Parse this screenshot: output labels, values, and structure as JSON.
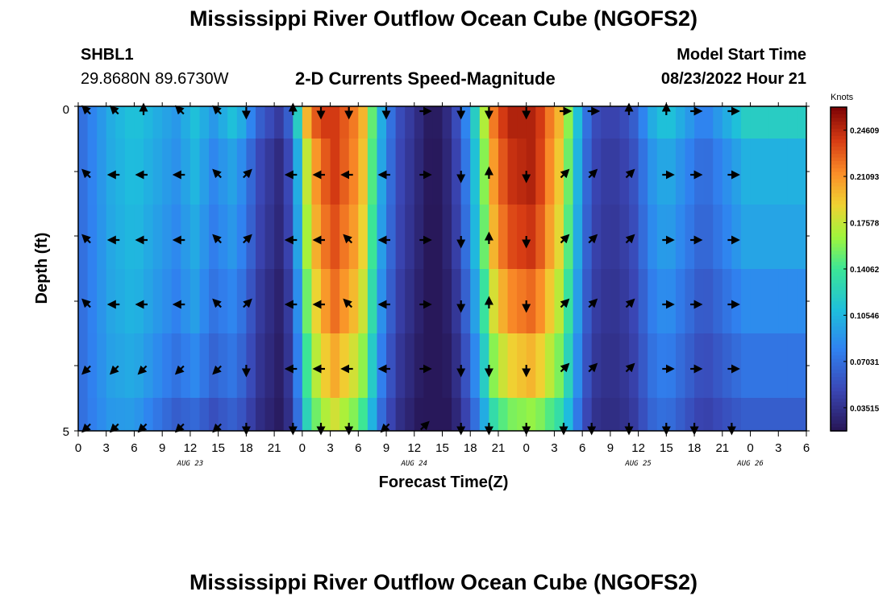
{
  "page": {
    "title": "Mississippi River Outflow Ocean Cube (NGOFS2)",
    "footer_title": "Mississippi River Outflow Ocean Cube (NGOFS2)"
  },
  "station": {
    "id": "SHBL1",
    "coords": "29.8680N  89.6730W"
  },
  "variable": "2-D Currents Speed-Magnitude",
  "model_start": {
    "label": "Model Start Time",
    "value": "08/23/2022 Hour 21"
  },
  "chart_data": {
    "type": "heatmap",
    "title": "2-D Currents Speed-Magnitude",
    "xlabel": "Forecast Time(Z)",
    "ylabel": "Depth (ft)",
    "ylim": [
      0,
      5
    ],
    "y_tick_labels": [
      "0",
      "5"
    ],
    "x_tick_labels": [
      "0",
      "3",
      "6",
      "9",
      "12",
      "15",
      "18",
      "21",
      "0",
      "3",
      "6",
      "9",
      "12",
      "15",
      "18",
      "21",
      "0",
      "3",
      "6",
      "9",
      "12",
      "15",
      "18",
      "21",
      "0",
      "3",
      "6"
    ],
    "date_labels": [
      "AUG 23",
      "AUG 24",
      "AUG 25",
      "AUG 26"
    ],
    "colorbar": {
      "unit": "Knots",
      "min": 0.0176,
      "max": 0.2636,
      "ticks": [
        "0.24609",
        "0.21093",
        "0.17578",
        "0.14062",
        "0.10546",
        "0.07031",
        "0.03515"
      ]
    },
    "layers_depth_ft": [
      0.25,
      1.0,
      2.0,
      3.0,
      4.0,
      4.75
    ],
    "speed_profile_knots": [
      [
        0,
        0.07
      ],
      [
        1,
        0.08
      ],
      [
        2,
        0.09
      ],
      [
        3,
        0.1
      ],
      [
        4,
        0.105
      ],
      [
        5,
        0.11
      ],
      [
        6,
        0.11
      ],
      [
        7,
        0.105
      ],
      [
        8,
        0.1
      ],
      [
        9,
        0.095
      ],
      [
        10,
        0.09
      ],
      [
        11,
        0.1
      ],
      [
        12,
        0.11
      ],
      [
        13,
        0.1
      ],
      [
        14,
        0.09
      ],
      [
        15,
        0.1
      ],
      [
        16,
        0.11
      ],
      [
        17,
        0.1
      ],
      [
        18,
        0.08
      ],
      [
        19,
        0.06
      ],
      [
        20,
        0.05
      ],
      [
        21,
        0.04
      ],
      [
        22,
        0.06
      ],
      [
        23,
        0.12
      ],
      [
        24,
        0.2
      ],
      [
        25,
        0.23
      ],
      [
        26,
        0.24
      ],
      [
        27,
        0.24
      ],
      [
        28,
        0.23
      ],
      [
        29,
        0.22
      ],
      [
        30,
        0.2
      ],
      [
        31,
        0.15
      ],
      [
        32,
        0.1
      ],
      [
        33,
        0.07
      ],
      [
        34,
        0.05
      ],
      [
        35,
        0.04
      ],
      [
        36,
        0.03
      ],
      [
        37,
        0.02
      ],
      [
        38,
        0.02
      ],
      [
        39,
        0.03
      ],
      [
        40,
        0.05
      ],
      [
        41,
        0.08
      ],
      [
        42,
        0.12
      ],
      [
        43,
        0.17
      ],
      [
        44,
        0.22
      ],
      [
        45,
        0.24
      ],
      [
        46,
        0.25
      ],
      [
        47,
        0.25
      ],
      [
        48,
        0.25
      ],
      [
        49,
        0.24
      ],
      [
        50,
        0.22
      ],
      [
        51,
        0.2
      ],
      [
        52,
        0.16
      ],
      [
        53,
        0.11
      ],
      [
        54,
        0.07
      ],
      [
        55,
        0.05
      ],
      [
        56,
        0.045
      ],
      [
        57,
        0.045
      ],
      [
        58,
        0.05
      ],
      [
        59,
        0.06
      ],
      [
        60,
        0.08
      ],
      [
        61,
        0.1
      ],
      [
        62,
        0.11
      ],
      [
        63,
        0.11
      ],
      [
        64,
        0.1
      ],
      [
        65,
        0.09
      ],
      [
        66,
        0.08
      ],
      [
        67,
        0.08
      ],
      [
        68,
        0.09
      ],
      [
        69,
        0.1
      ],
      [
        70,
        0.11
      ],
      [
        71,
        0.12
      ]
    ],
    "layer_factors": [
      [
        1.0,
        1.0,
        1.0,
        1.0,
        1.0,
        1.0
      ],
      [
        1.0,
        0.95,
        0.9,
        0.85,
        0.75,
        0.6
      ],
      [
        1.0,
        0.75,
        0.7,
        0.6,
        0.55,
        0.5
      ],
      [
        1.0,
        1.0,
        0.97,
        0.93,
        0.85,
        0.75
      ],
      [
        1.0,
        0.9,
        0.85,
        0.75,
        0.65,
        0.55
      ],
      [
        1.0,
        1.0,
        0.97,
        0.9,
        0.8,
        0.65
      ],
      [
        1.0,
        0.9,
        0.85,
        0.8,
        0.75,
        0.7
      ],
      [
        1.0,
        0.85,
        0.8,
        0.7,
        0.6,
        0.5
      ]
    ],
    "layer_factor_hours": [
      0,
      12,
      21,
      27,
      40,
      48,
      57,
      71
    ],
    "arrow_columns_hour": [
      1,
      4,
      7,
      11,
      15,
      18,
      23,
      26,
      29,
      33,
      37,
      41,
      44,
      48,
      52,
      55,
      59,
      63,
      66,
      70
    ],
    "arrow_direction_deg": [
      [
        135,
        135,
        90,
        135,
        135,
        270,
        90,
        270,
        270,
        270,
        0,
        270,
        270,
        270,
        0,
        0,
        90,
        90,
        0,
        0
      ],
      [
        135,
        180,
        180,
        180,
        135,
        45,
        180,
        180,
        180,
        180,
        0,
        270,
        90,
        270,
        45,
        45,
        45,
        0,
        0,
        0
      ],
      [
        135,
        180,
        180,
        180,
        135,
        45,
        180,
        180,
        135,
        180,
        0,
        270,
        90,
        270,
        45,
        45,
        45,
        0,
        0,
        0
      ],
      [
        135,
        180,
        180,
        180,
        135,
        45,
        180,
        180,
        135,
        180,
        0,
        270,
        90,
        270,
        45,
        45,
        45,
        0,
        0,
        0
      ],
      [
        225,
        225,
        225,
        225,
        225,
        270,
        180,
        180,
        180,
        180,
        0,
        270,
        270,
        270,
        45,
        45,
        45,
        0,
        0,
        0
      ],
      [
        225,
        225,
        225,
        225,
        225,
        270,
        270,
        270,
        270,
        225,
        45,
        270,
        270,
        270,
        270,
        270,
        270,
        270,
        270,
        270
      ]
    ]
  }
}
